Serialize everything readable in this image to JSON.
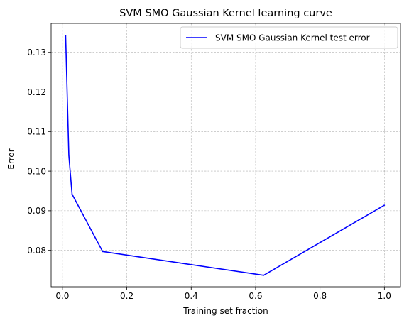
{
  "chart_data": {
    "type": "line",
    "title": "SVM SMO Gaussian Kernel learning curve",
    "xlabel": "Training set fraction",
    "ylabel": "Error",
    "xlim": [
      -0.035,
      1.05
    ],
    "ylim": [
      0.0708,
      0.1373
    ],
    "x_ticks": [
      0.0,
      0.2,
      0.4,
      0.6,
      0.8,
      1.0
    ],
    "x_tick_labels": [
      "0.0",
      "0.2",
      "0.4",
      "0.6",
      "0.8",
      "1.0"
    ],
    "y_ticks": [
      0.08,
      0.09,
      0.1,
      0.11,
      0.12,
      0.13
    ],
    "y_tick_labels": [
      "0.08",
      "0.09",
      "0.10",
      "0.11",
      "0.12",
      "0.13"
    ],
    "grid": true,
    "legend_position": "top-right",
    "series": [
      {
        "name": "SVM SMO Gaussian Kernel test error",
        "color": "#0000ff",
        "x": [
          0.01,
          0.02,
          0.03,
          0.125,
          0.625,
          1.0
        ],
        "y": [
          0.1342,
          0.104,
          0.0942,
          0.0797,
          0.0737,
          0.0914
        ]
      }
    ]
  }
}
